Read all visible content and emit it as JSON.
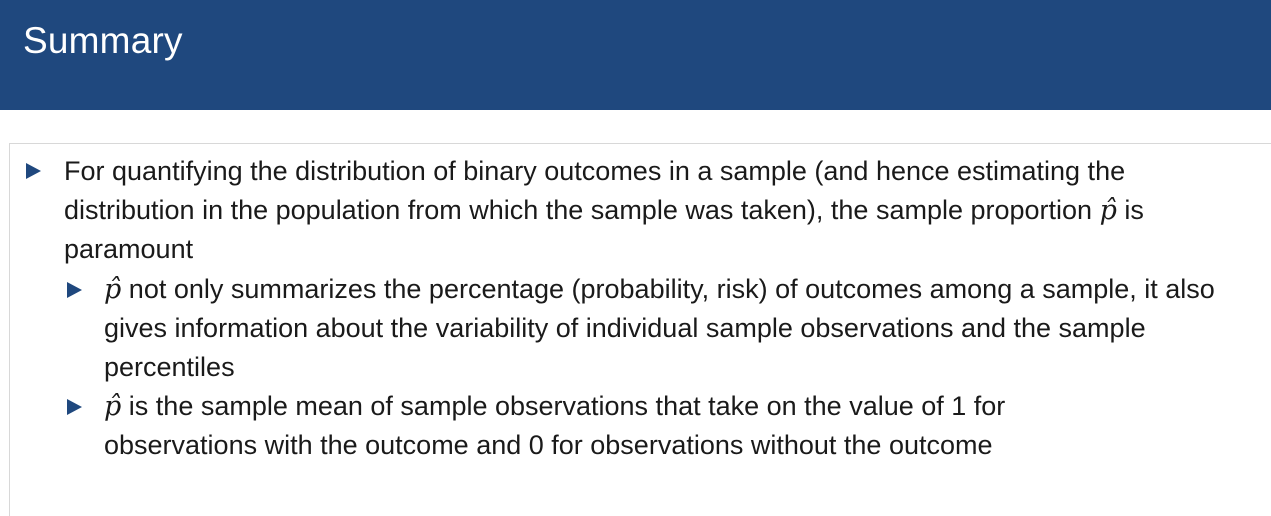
{
  "slide": {
    "title": "Summary"
  },
  "bullets": [
    {
      "text_before": "For quantifying the distribution of binary outcomes in a sample (and hence estimating the distribution in the population from which the sample was taken), the sample proportion ",
      "symbol": "p̂",
      "text_after": " is paramount",
      "sub_bullets": [
        {
          "symbol": "p̂",
          "text": " not only summarizes the percentage (probability, risk) of outcomes among a sample, it also gives information about the variability of individual sample observations and the sample percentiles"
        },
        {
          "symbol": "p̂",
          "text": " is the sample mean of sample observations that take on the value of 1 for observations with the outcome and 0 for observations without the outcome"
        }
      ]
    }
  ],
  "colors": {
    "title_bar": "#1f487e",
    "bullet_marker": "#1f487e",
    "title_text": "#ffffff"
  }
}
